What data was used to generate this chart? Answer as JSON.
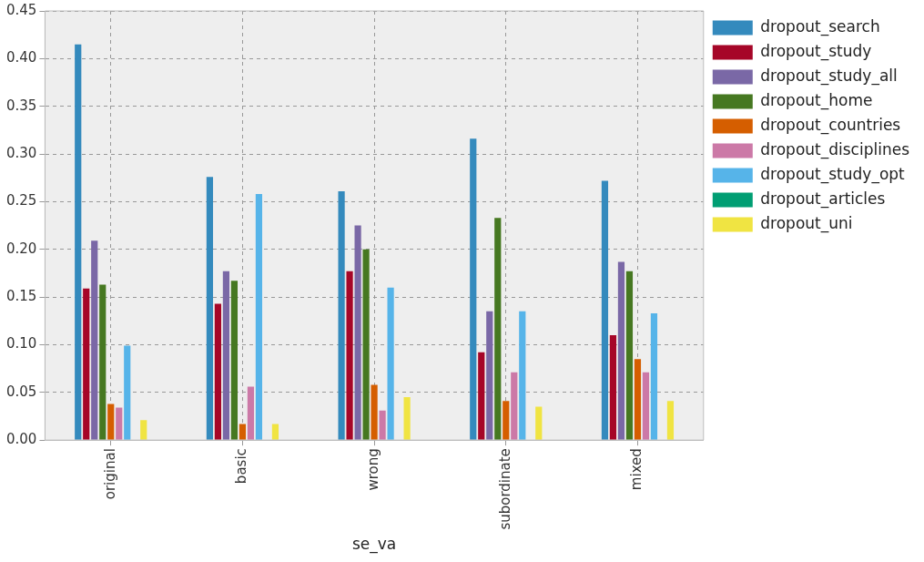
{
  "chart_data": {
    "type": "bar",
    "xlabel": "se_va",
    "categories": [
      "original",
      "basic",
      "wrong",
      "subordinate",
      "mixed"
    ],
    "series": [
      {
        "name": "dropout_search",
        "color": "#348abd",
        "values": [
          0.415,
          0.276,
          0.261,
          0.316,
          0.272
        ]
      },
      {
        "name": "dropout_study",
        "color": "#a60628",
        "values": [
          0.159,
          0.143,
          0.177,
          0.092,
          0.11
        ]
      },
      {
        "name": "dropout_study_all",
        "color": "#7a68a6",
        "values": [
          0.209,
          0.177,
          0.225,
          0.135,
          0.187
        ]
      },
      {
        "name": "dropout_home",
        "color": "#467821",
        "values": [
          0.163,
          0.167,
          0.2,
          0.233,
          0.177
        ]
      },
      {
        "name": "dropout_countries",
        "color": "#d55e00",
        "values": [
          0.038,
          0.017,
          0.058,
          0.041,
          0.085
        ]
      },
      {
        "name": "dropout_disciplines",
        "color": "#cc79a7",
        "values": [
          0.034,
          0.056,
          0.031,
          0.071,
          0.071
        ]
      },
      {
        "name": "dropout_study_opt",
        "color": "#56b4e9",
        "values": [
          0.099,
          0.258,
          0.16,
          0.135,
          0.133
        ]
      },
      {
        "name": "dropout_articles",
        "color": "#009e73",
        "values": [
          0,
          0,
          0,
          0,
          0
        ]
      },
      {
        "name": "dropout_uni",
        "color": "#f0e442",
        "values": [
          0.021,
          0.017,
          0.045,
          0.035,
          0.041
        ]
      }
    ],
    "ylim": [
      0,
      0.45
    ],
    "yticks": [
      {
        "value": 0,
        "label": "0.00"
      },
      {
        "value": 0.05,
        "label": "0.05"
      },
      {
        "value": 0.1,
        "label": "0.10"
      },
      {
        "value": 0.15,
        "label": "0.15"
      },
      {
        "value": 0.2,
        "label": "0.20"
      },
      {
        "value": 0.25,
        "label": "0.25"
      },
      {
        "value": 0.3,
        "label": "0.30"
      },
      {
        "value": 0.35,
        "label": "0.35"
      },
      {
        "value": 0.4,
        "label": "0.40"
      },
      {
        "value": 0.45,
        "label": "0.45"
      }
    ],
    "grid": true,
    "legend": "right"
  }
}
